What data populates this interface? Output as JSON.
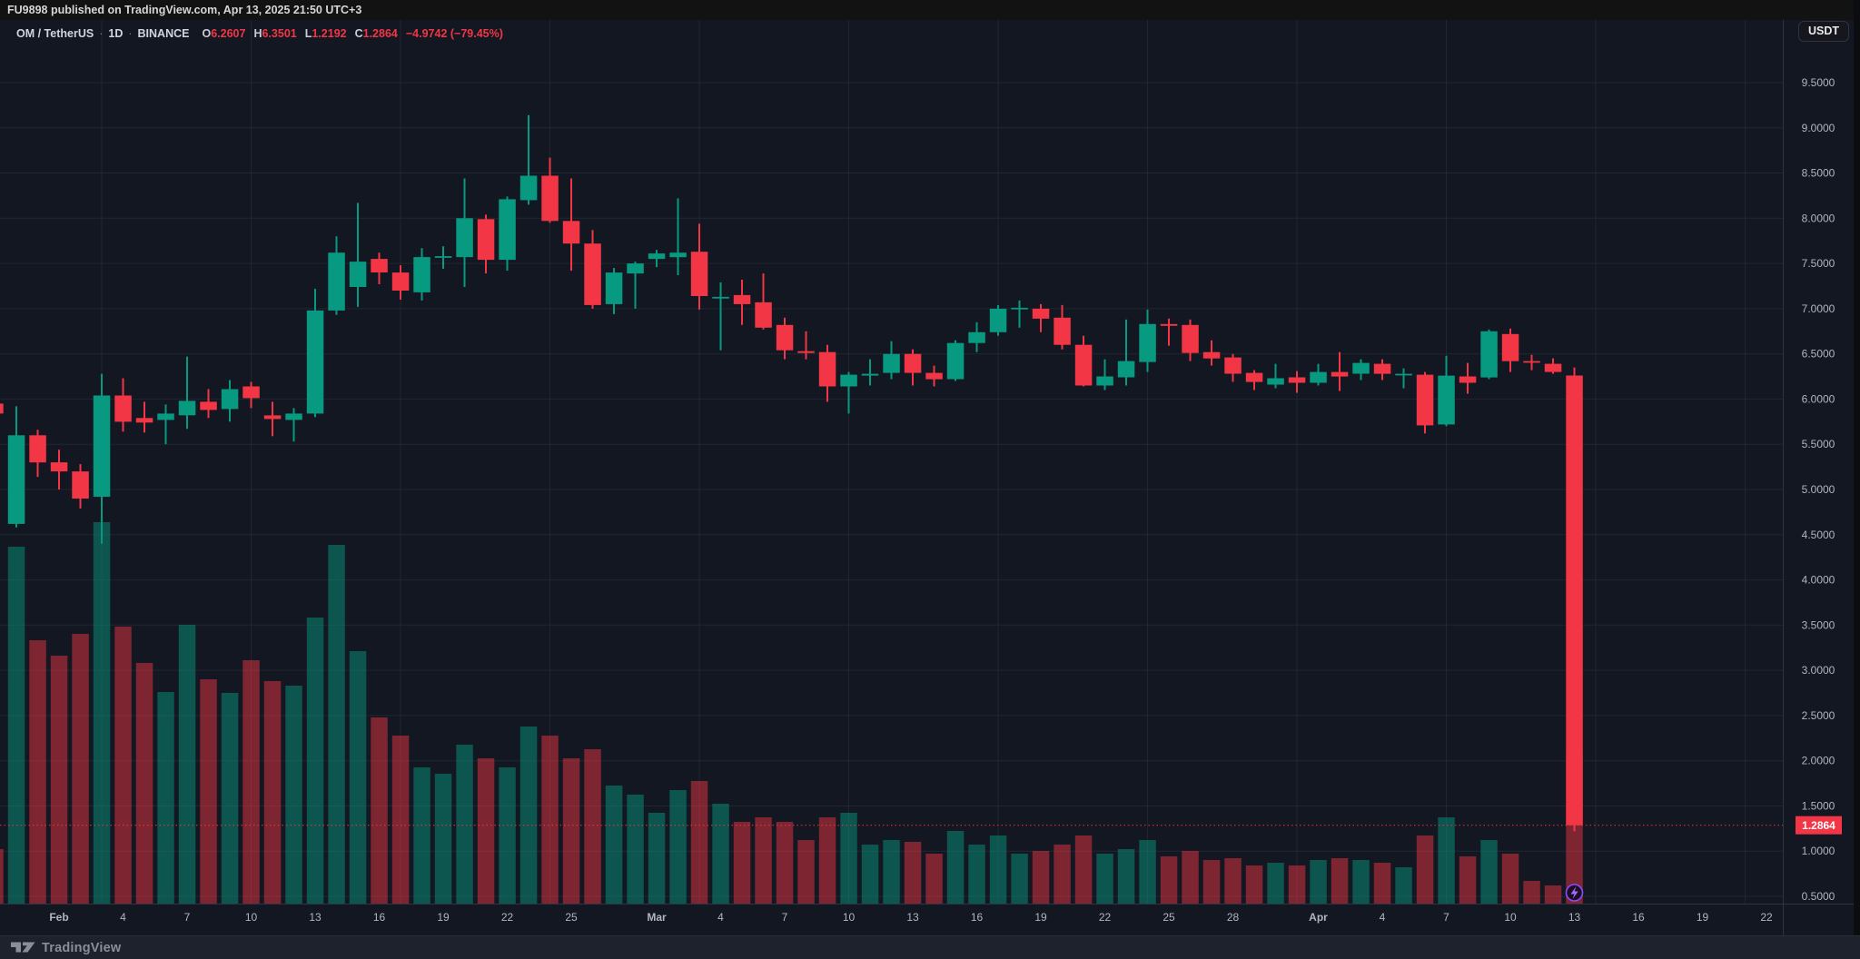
{
  "header": {
    "text": "FU9898 published on TradingView.com, Apr 13, 2025 21:50 UTC+3"
  },
  "legend": {
    "symbol": "OM / TetherUS",
    "separator": "·",
    "interval": "1D",
    "exchange": "BINANCE",
    "o_label": "O",
    "o": "6.2607",
    "h_label": "H",
    "h": "6.3501",
    "l_label": "L",
    "l": "1.2192",
    "c_label": "C",
    "c": "1.2864",
    "change": "−4.9742 (−79.45%)"
  },
  "currency_button": {
    "label": "USDT"
  },
  "price_label": {
    "value": "1.2864"
  },
  "footer": {
    "brand": "TradingView"
  },
  "colors": {
    "up": "#089981",
    "down": "#f23645",
    "bg": "#131722",
    "grid": "#363a45",
    "axis_line": "#2f3442",
    "axis_text": "#b2b5be",
    "label_text": "#ffffff",
    "marker_ring": "#8c4bff",
    "marker_bolt": "#a869ff",
    "marker_fill": "#1a1026"
  },
  "chart_data": {
    "type": "candlestick+volume",
    "title": "OM / TetherUS · 1D · BINANCE",
    "last_price": 1.2864,
    "y_axis": {
      "min": 0.5,
      "max": 9.5,
      "step": 0.5,
      "decimals": 4,
      "side": "right"
    },
    "x_axis": {
      "ticks": [
        {
          "label": "Feb",
          "day": 0,
          "month": true
        },
        {
          "label": "4",
          "day": 3
        },
        {
          "label": "7",
          "day": 6
        },
        {
          "label": "10",
          "day": 9
        },
        {
          "label": "13",
          "day": 12
        },
        {
          "label": "16",
          "day": 15
        },
        {
          "label": "19",
          "day": 18
        },
        {
          "label": "22",
          "day": 21
        },
        {
          "label": "25",
          "day": 24
        },
        {
          "label": "Mar",
          "day": 28,
          "month": true
        },
        {
          "label": "4",
          "day": 31
        },
        {
          "label": "7",
          "day": 34
        },
        {
          "label": "10",
          "day": 37
        },
        {
          "label": "13",
          "day": 40
        },
        {
          "label": "16",
          "day": 43
        },
        {
          "label": "19",
          "day": 46
        },
        {
          "label": "22",
          "day": 49
        },
        {
          "label": "25",
          "day": 52
        },
        {
          "label": "28",
          "day": 55
        },
        {
          "label": "Apr",
          "day": 59,
          "month": true
        },
        {
          "label": "4",
          "day": 62
        },
        {
          "label": "7",
          "day": 65
        },
        {
          "label": "10",
          "day": 68
        },
        {
          "label": "13",
          "day": 71
        },
        {
          "label": "16",
          "day": 74
        },
        {
          "label": "19",
          "day": 77
        },
        {
          "label": "22",
          "day": 80
        }
      ],
      "monday_grid_days": [
        2,
        9,
        16,
        23,
        30,
        37,
        44,
        51,
        58,
        65,
        72,
        79
      ]
    },
    "grid": true,
    "candles": [
      {
        "d": "Jan 29",
        "o": 5.95,
        "h": 6.0,
        "l": 5.8,
        "c": 5.84,
        "v": 60
      },
      {
        "d": "Jan 30",
        "o": 4.62,
        "h": 5.92,
        "l": 4.58,
        "c": 5.6,
        "v": 393
      },
      {
        "d": "Jan 31",
        "o": 5.6,
        "h": 5.66,
        "l": 5.14,
        "c": 5.3,
        "v": 290
      },
      {
        "d": "Feb 1",
        "o": 5.3,
        "h": 5.44,
        "l": 5.0,
        "c": 5.2,
        "v": 273
      },
      {
        "d": "Feb 2",
        "o": 5.2,
        "h": 5.28,
        "l": 4.79,
        "c": 4.9,
        "v": 297
      },
      {
        "d": "Feb 3",
        "o": 4.92,
        "h": 6.28,
        "l": 4.4,
        "c": 6.04,
        "v": 420
      },
      {
        "d": "Feb 4",
        "o": 6.04,
        "h": 6.23,
        "l": 5.64,
        "c": 5.75,
        "v": 305
      },
      {
        "d": "Feb 5",
        "o": 5.79,
        "h": 5.97,
        "l": 5.63,
        "c": 5.74,
        "v": 265
      },
      {
        "d": "Feb 6",
        "o": 5.77,
        "h": 5.94,
        "l": 5.5,
        "c": 5.84,
        "v": 233
      },
      {
        "d": "Feb 7",
        "o": 5.82,
        "h": 6.47,
        "l": 5.67,
        "c": 5.98,
        "v": 307
      },
      {
        "d": "Feb 8",
        "o": 5.97,
        "h": 6.11,
        "l": 5.79,
        "c": 5.88,
        "v": 247
      },
      {
        "d": "Feb 9",
        "o": 5.89,
        "h": 6.21,
        "l": 5.75,
        "c": 6.11,
        "v": 232
      },
      {
        "d": "Feb 10",
        "o": 6.14,
        "h": 6.19,
        "l": 5.9,
        "c": 6.01,
        "v": 268
      },
      {
        "d": "Feb 11",
        "o": 5.82,
        "h": 5.97,
        "l": 5.59,
        "c": 5.78,
        "v": 245
      },
      {
        "d": "Feb 12",
        "o": 5.77,
        "h": 5.9,
        "l": 5.53,
        "c": 5.84,
        "v": 240
      },
      {
        "d": "Feb 13",
        "o": 5.84,
        "h": 7.22,
        "l": 5.8,
        "c": 6.98,
        "v": 315
      },
      {
        "d": "Feb 14",
        "o": 6.98,
        "h": 7.8,
        "l": 6.93,
        "c": 7.62,
        "v": 395
      },
      {
        "d": "Feb 15",
        "o": 7.24,
        "h": 8.17,
        "l": 7.02,
        "c": 7.52,
        "v": 278
      },
      {
        "d": "Feb 16",
        "o": 7.55,
        "h": 7.62,
        "l": 7.27,
        "c": 7.4,
        "v": 205
      },
      {
        "d": "Feb 17",
        "o": 7.4,
        "h": 7.48,
        "l": 7.1,
        "c": 7.2,
        "v": 185
      },
      {
        "d": "Feb 18",
        "o": 7.18,
        "h": 7.67,
        "l": 7.09,
        "c": 7.57,
        "v": 150
      },
      {
        "d": "Feb 19",
        "o": 7.57,
        "h": 7.69,
        "l": 7.44,
        "c": 7.58,
        "v": 143
      },
      {
        "d": "Feb 20",
        "o": 7.57,
        "h": 8.44,
        "l": 7.24,
        "c": 8.0,
        "v": 175
      },
      {
        "d": "Feb 21",
        "o": 7.99,
        "h": 8.04,
        "l": 7.39,
        "c": 7.54,
        "v": 160
      },
      {
        "d": "Feb 22",
        "o": 7.54,
        "h": 8.24,
        "l": 7.42,
        "c": 8.21,
        "v": 150
      },
      {
        "d": "Feb 23",
        "o": 8.2,
        "h": 9.14,
        "l": 8.15,
        "c": 8.47,
        "v": 195
      },
      {
        "d": "Feb 24",
        "o": 8.47,
        "h": 8.67,
        "l": 7.95,
        "c": 7.97,
        "v": 185
      },
      {
        "d": "Feb 25",
        "o": 7.97,
        "h": 8.44,
        "l": 7.42,
        "c": 7.72,
        "v": 160
      },
      {
        "d": "Feb 26",
        "o": 7.72,
        "h": 7.87,
        "l": 7.0,
        "c": 7.04,
        "v": 170
      },
      {
        "d": "Feb 27",
        "o": 7.05,
        "h": 7.45,
        "l": 6.94,
        "c": 7.4,
        "v": 130
      },
      {
        "d": "Feb 28",
        "o": 7.39,
        "h": 7.52,
        "l": 7.0,
        "c": 7.5,
        "v": 120
      },
      {
        "d": "Mar 1",
        "o": 7.55,
        "h": 7.65,
        "l": 7.46,
        "c": 7.61,
        "v": 100
      },
      {
        "d": "Mar 2",
        "o": 7.57,
        "h": 8.22,
        "l": 7.37,
        "c": 7.62,
        "v": 125
      },
      {
        "d": "Mar 3",
        "o": 7.63,
        "h": 7.94,
        "l": 6.99,
        "c": 7.14,
        "v": 135
      },
      {
        "d": "Mar 4",
        "o": 7.13,
        "h": 7.29,
        "l": 6.54,
        "c": 7.13,
        "v": 110
      },
      {
        "d": "Mar 5",
        "o": 7.15,
        "h": 7.32,
        "l": 6.82,
        "c": 7.05,
        "v": 90
      },
      {
        "d": "Mar 6",
        "o": 7.07,
        "h": 7.39,
        "l": 6.77,
        "c": 6.79,
        "v": 95
      },
      {
        "d": "Mar 7",
        "o": 6.82,
        "h": 6.9,
        "l": 6.44,
        "c": 6.54,
        "v": 90
      },
      {
        "d": "Mar 8",
        "o": 6.53,
        "h": 6.75,
        "l": 6.44,
        "c": 6.51,
        "v": 70
      },
      {
        "d": "Mar 9",
        "o": 6.52,
        "h": 6.6,
        "l": 5.97,
        "c": 6.14,
        "v": 95
      },
      {
        "d": "Mar 10",
        "o": 6.14,
        "h": 6.3,
        "l": 5.84,
        "c": 6.27,
        "v": 100
      },
      {
        "d": "Mar 11",
        "o": 6.26,
        "h": 6.44,
        "l": 6.15,
        "c": 6.28,
        "v": 65
      },
      {
        "d": "Mar 12",
        "o": 6.29,
        "h": 6.64,
        "l": 6.22,
        "c": 6.5,
        "v": 70
      },
      {
        "d": "Mar 13",
        "o": 6.5,
        "h": 6.55,
        "l": 6.15,
        "c": 6.29,
        "v": 68
      },
      {
        "d": "Mar 14",
        "o": 6.29,
        "h": 6.37,
        "l": 6.14,
        "c": 6.22,
        "v": 55
      },
      {
        "d": "Mar 15",
        "o": 6.22,
        "h": 6.65,
        "l": 6.2,
        "c": 6.62,
        "v": 80
      },
      {
        "d": "Mar 16",
        "o": 6.62,
        "h": 6.85,
        "l": 6.52,
        "c": 6.74,
        "v": 65
      },
      {
        "d": "Mar 17",
        "o": 6.74,
        "h": 7.04,
        "l": 6.7,
        "c": 7.0,
        "v": 75
      },
      {
        "d": "Mar 18",
        "o": 7.0,
        "h": 7.09,
        "l": 6.79,
        "c": 7.01,
        "v": 55
      },
      {
        "d": "Mar 19",
        "o": 7.0,
        "h": 7.05,
        "l": 6.74,
        "c": 6.89,
        "v": 58
      },
      {
        "d": "Mar 20",
        "o": 6.9,
        "h": 7.04,
        "l": 6.55,
        "c": 6.6,
        "v": 65
      },
      {
        "d": "Mar 21",
        "o": 6.6,
        "h": 6.7,
        "l": 6.14,
        "c": 6.15,
        "v": 75
      },
      {
        "d": "Mar 22",
        "o": 6.15,
        "h": 6.44,
        "l": 6.1,
        "c": 6.25,
        "v": 55
      },
      {
        "d": "Mar 23",
        "o": 6.24,
        "h": 6.88,
        "l": 6.15,
        "c": 6.42,
        "v": 60
      },
      {
        "d": "Mar 24",
        "o": 6.41,
        "h": 6.99,
        "l": 6.3,
        "c": 6.83,
        "v": 70
      },
      {
        "d": "Mar 25",
        "o": 6.83,
        "h": 6.89,
        "l": 6.59,
        "c": 6.81,
        "v": 52
      },
      {
        "d": "Mar 26",
        "o": 6.82,
        "h": 6.88,
        "l": 6.42,
        "c": 6.51,
        "v": 58
      },
      {
        "d": "Mar 27",
        "o": 6.52,
        "h": 6.65,
        "l": 6.37,
        "c": 6.45,
        "v": 48
      },
      {
        "d": "Mar 28",
        "o": 6.46,
        "h": 6.5,
        "l": 6.19,
        "c": 6.28,
        "v": 50
      },
      {
        "d": "Mar 29",
        "o": 6.29,
        "h": 6.32,
        "l": 6.1,
        "c": 6.19,
        "v": 42
      },
      {
        "d": "Mar 30",
        "o": 6.16,
        "h": 6.39,
        "l": 6.12,
        "c": 6.23,
        "v": 45
      },
      {
        "d": "Mar 31",
        "o": 6.24,
        "h": 6.31,
        "l": 6.07,
        "c": 6.18,
        "v": 42
      },
      {
        "d": "Apr 1",
        "o": 6.18,
        "h": 6.39,
        "l": 6.15,
        "c": 6.3,
        "v": 48
      },
      {
        "d": "Apr 2",
        "o": 6.3,
        "h": 6.52,
        "l": 6.09,
        "c": 6.25,
        "v": 50
      },
      {
        "d": "Apr 3",
        "o": 6.28,
        "h": 6.44,
        "l": 6.21,
        "c": 6.4,
        "v": 48
      },
      {
        "d": "Apr 4",
        "o": 6.39,
        "h": 6.44,
        "l": 6.21,
        "c": 6.28,
        "v": 45
      },
      {
        "d": "Apr 5",
        "o": 6.27,
        "h": 6.34,
        "l": 6.12,
        "c": 6.28,
        "v": 40
      },
      {
        "d": "Apr 6",
        "o": 6.27,
        "h": 6.3,
        "l": 5.62,
        "c": 5.71,
        "v": 75
      },
      {
        "d": "Apr 7",
        "o": 5.72,
        "h": 6.48,
        "l": 5.7,
        "c": 6.26,
        "v": 95
      },
      {
        "d": "Apr 8",
        "o": 6.25,
        "h": 6.4,
        "l": 6.06,
        "c": 6.18,
        "v": 52
      },
      {
        "d": "Apr 9",
        "o": 6.24,
        "h": 6.77,
        "l": 6.22,
        "c": 6.75,
        "v": 70
      },
      {
        "d": "Apr 10",
        "o": 6.72,
        "h": 6.78,
        "l": 6.3,
        "c": 6.42,
        "v": 55
      },
      {
        "d": "Apr 11",
        "o": 6.42,
        "h": 6.49,
        "l": 6.32,
        "c": 6.41,
        "v": 25
      },
      {
        "d": "Apr 12",
        "o": 6.39,
        "h": 6.45,
        "l": 6.28,
        "c": 6.3,
        "v": 20
      },
      {
        "d": "Apr 13",
        "o": 6.2607,
        "h": 6.3501,
        "l": 1.2192,
        "c": 1.2864,
        "v": 165
      }
    ]
  }
}
